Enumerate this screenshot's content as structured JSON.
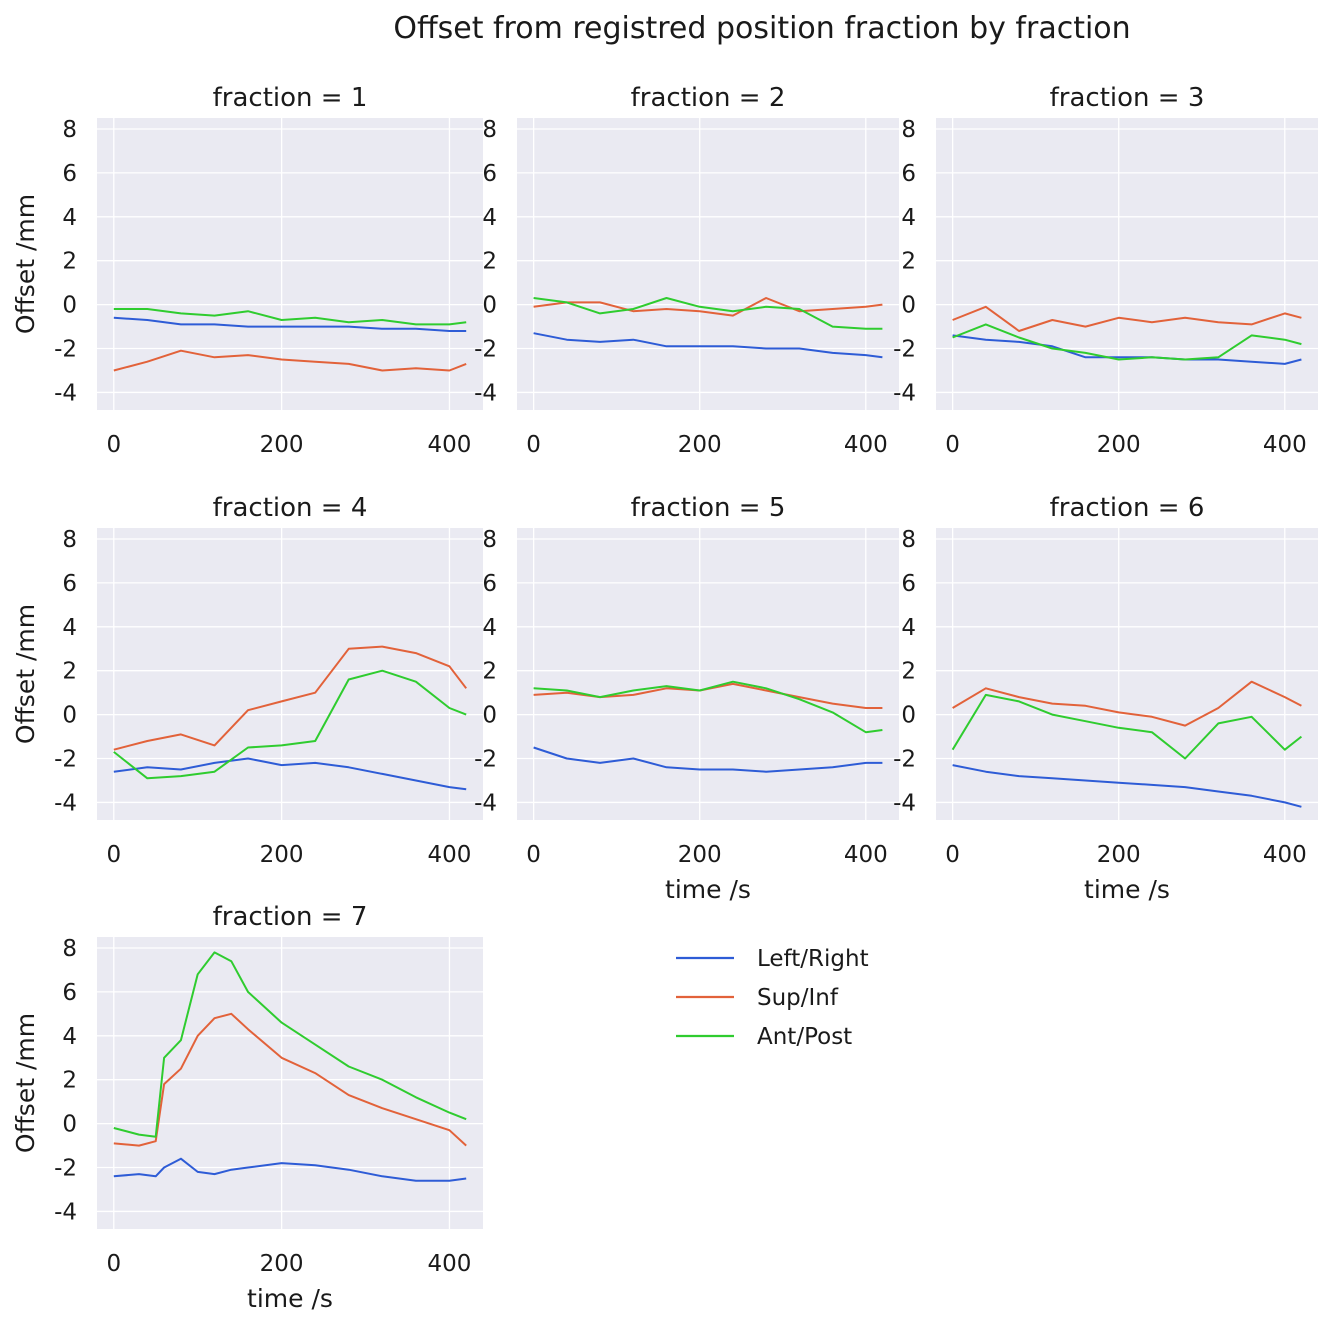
{
  "figure": {
    "title": "Offset from registred position fraction by fraction",
    "y_label": "Offset /mm",
    "x_label": "time /s",
    "legend": [
      {
        "label": "Left/Right",
        "color": "#2e5cd6"
      },
      {
        "label": "Sup/Inf",
        "color": "#e2623a"
      },
      {
        "label": "Ant/Post",
        "color": "#2fcc2f"
      }
    ]
  },
  "chart_data": [
    {
      "type": "line",
      "title": "fraction = 1",
      "xlabel": "",
      "ylabel": "Offset /mm",
      "xlim": [
        -20,
        440
      ],
      "ylim": [
        -4.8,
        8.5
      ],
      "xticks": [
        0,
        200,
        400
      ],
      "yticks": [
        8,
        6,
        4,
        2,
        0,
        -2,
        -4
      ],
      "x": [
        0,
        40,
        80,
        120,
        160,
        200,
        240,
        280,
        320,
        360,
        400,
        420
      ],
      "series": [
        {
          "name": "Left/Right",
          "values": [
            -0.6,
            -0.7,
            -0.9,
            -0.9,
            -1.0,
            -1.0,
            -1.0,
            -1.0,
            -1.1,
            -1.1,
            -1.2,
            -1.2
          ]
        },
        {
          "name": "Sup/Inf",
          "values": [
            -3.0,
            -2.6,
            -2.1,
            -2.4,
            -2.3,
            -2.5,
            -2.6,
            -2.7,
            -3.0,
            -2.9,
            -3.0,
            -2.7
          ]
        },
        {
          "name": "Ant/Post",
          "values": [
            -0.2,
            -0.2,
            -0.4,
            -0.5,
            -0.3,
            -0.7,
            -0.6,
            -0.8,
            -0.7,
            -0.9,
            -0.9,
            -0.8
          ]
        }
      ]
    },
    {
      "type": "line",
      "title": "fraction = 2",
      "xlabel": "",
      "ylabel": "",
      "xlim": [
        -20,
        440
      ],
      "ylim": [
        -4.8,
        8.5
      ],
      "xticks": [
        0,
        200,
        400
      ],
      "yticks": [
        8,
        6,
        4,
        2,
        0,
        -2,
        -4
      ],
      "x": [
        0,
        40,
        80,
        120,
        160,
        200,
        240,
        280,
        320,
        360,
        400,
        420
      ],
      "series": [
        {
          "name": "Left/Right",
          "values": [
            -1.3,
            -1.6,
            -1.7,
            -1.6,
            -1.9,
            -1.9,
            -1.9,
            -2.0,
            -2.0,
            -2.2,
            -2.3,
            -2.4
          ]
        },
        {
          "name": "Sup/Inf",
          "values": [
            -0.1,
            0.1,
            0.1,
            -0.3,
            -0.2,
            -0.3,
            -0.5,
            0.3,
            -0.3,
            -0.2,
            -0.1,
            0.0
          ]
        },
        {
          "name": "Ant/Post",
          "values": [
            0.3,
            0.1,
            -0.4,
            -0.2,
            0.3,
            -0.1,
            -0.3,
            -0.1,
            -0.2,
            -1.0,
            -1.1,
            -1.1
          ]
        }
      ]
    },
    {
      "type": "line",
      "title": "fraction = 3",
      "xlabel": "",
      "ylabel": "",
      "xlim": [
        -20,
        440
      ],
      "ylim": [
        -4.8,
        8.5
      ],
      "xticks": [
        0,
        200,
        400
      ],
      "yticks": [
        8,
        6,
        4,
        2,
        0,
        -2,
        -4
      ],
      "x": [
        0,
        40,
        80,
        120,
        160,
        200,
        240,
        280,
        320,
        360,
        400,
        420
      ],
      "series": [
        {
          "name": "Left/Right",
          "values": [
            -1.4,
            -1.6,
            -1.7,
            -1.9,
            -2.4,
            -2.4,
            -2.4,
            -2.5,
            -2.5,
            -2.6,
            -2.7,
            -2.5
          ]
        },
        {
          "name": "Sup/Inf",
          "values": [
            -0.7,
            -0.1,
            -1.2,
            -0.7,
            -1.0,
            -0.6,
            -0.8,
            -0.6,
            -0.8,
            -0.9,
            -0.4,
            -0.6
          ]
        },
        {
          "name": "Ant/Post",
          "values": [
            -1.5,
            -0.9,
            -1.5,
            -2.0,
            -2.2,
            -2.5,
            -2.4,
            -2.5,
            -2.4,
            -1.4,
            -1.6,
            -1.8
          ]
        }
      ]
    },
    {
      "type": "line",
      "title": "fraction = 4",
      "xlabel": "",
      "ylabel": "Offset /mm",
      "xlim": [
        -20,
        440
      ],
      "ylim": [
        -4.8,
        8.5
      ],
      "xticks": [
        0,
        200,
        400
      ],
      "yticks": [
        8,
        6,
        4,
        2,
        0,
        -2,
        -4
      ],
      "x": [
        0,
        40,
        80,
        120,
        160,
        200,
        240,
        280,
        320,
        360,
        400,
        420
      ],
      "series": [
        {
          "name": "Left/Right",
          "values": [
            -2.6,
            -2.4,
            -2.5,
            -2.2,
            -2.0,
            -2.3,
            -2.2,
            -2.4,
            -2.7,
            -3.0,
            -3.3,
            -3.4
          ]
        },
        {
          "name": "Sup/Inf",
          "values": [
            -1.6,
            -1.2,
            -0.9,
            -1.4,
            0.2,
            0.6,
            1.0,
            3.0,
            3.1,
            2.8,
            2.2,
            1.2
          ]
        },
        {
          "name": "Ant/Post",
          "values": [
            -1.7,
            -2.9,
            -2.8,
            -2.6,
            -1.5,
            -1.4,
            -1.2,
            1.6,
            2.0,
            1.5,
            0.3,
            0.0
          ]
        }
      ]
    },
    {
      "type": "line",
      "title": "fraction = 5",
      "xlabel": "time /s",
      "ylabel": "",
      "xlim": [
        -20,
        440
      ],
      "ylim": [
        -4.8,
        8.5
      ],
      "xticks": [
        0,
        200,
        400
      ],
      "yticks": [
        8,
        6,
        4,
        2,
        0,
        -2,
        -4
      ],
      "x": [
        0,
        40,
        80,
        120,
        160,
        200,
        240,
        280,
        320,
        360,
        400,
        420
      ],
      "series": [
        {
          "name": "Left/Right",
          "values": [
            -1.5,
            -2.0,
            -2.2,
            -2.0,
            -2.4,
            -2.5,
            -2.5,
            -2.6,
            -2.5,
            -2.4,
            -2.2,
            -2.2
          ]
        },
        {
          "name": "Sup/Inf",
          "values": [
            0.9,
            1.0,
            0.8,
            0.9,
            1.2,
            1.1,
            1.4,
            1.1,
            0.8,
            0.5,
            0.3,
            0.3
          ]
        },
        {
          "name": "Ant/Post",
          "values": [
            1.2,
            1.1,
            0.8,
            1.1,
            1.3,
            1.1,
            1.5,
            1.2,
            0.7,
            0.1,
            -0.8,
            -0.7
          ]
        }
      ]
    },
    {
      "type": "line",
      "title": "fraction = 6",
      "xlabel": "time /s",
      "ylabel": "",
      "xlim": [
        -20,
        440
      ],
      "ylim": [
        -4.8,
        8.5
      ],
      "xticks": [
        0,
        200,
        400
      ],
      "yticks": [
        8,
        6,
        4,
        2,
        0,
        -2,
        -4
      ],
      "x": [
        0,
        40,
        80,
        120,
        160,
        200,
        240,
        280,
        320,
        360,
        400,
        420
      ],
      "series": [
        {
          "name": "Left/Right",
          "values": [
            -2.3,
            -2.6,
            -2.8,
            -2.9,
            -3.0,
            -3.1,
            -3.2,
            -3.3,
            -3.5,
            -3.7,
            -4.0,
            -4.2
          ]
        },
        {
          "name": "Sup/Inf",
          "values": [
            0.3,
            1.2,
            0.8,
            0.5,
            0.4,
            0.1,
            -0.1,
            -0.5,
            0.3,
            1.5,
            0.8,
            0.4
          ]
        },
        {
          "name": "Ant/Post",
          "values": [
            -1.6,
            0.9,
            0.6,
            0.0,
            -0.3,
            -0.6,
            -0.8,
            -2.0,
            -0.4,
            -0.1,
            -1.6,
            -1.0
          ]
        }
      ]
    },
    {
      "type": "line",
      "title": "fraction = 7",
      "xlabel": "time /s",
      "ylabel": "Offset /mm",
      "xlim": [
        -20,
        440
      ],
      "ylim": [
        -4.8,
        8.5
      ],
      "xticks": [
        0,
        200,
        400
      ],
      "yticks": [
        8,
        6,
        4,
        2,
        0,
        -2,
        -4
      ],
      "x": [
        0,
        30,
        50,
        60,
        80,
        100,
        120,
        140,
        160,
        200,
        240,
        280,
        320,
        360,
        400,
        420
      ],
      "series": [
        {
          "name": "Left/Right",
          "values": [
            -2.4,
            -2.3,
            -2.4,
            -2.0,
            -1.6,
            -2.2,
            -2.3,
            -2.1,
            -2.0,
            -1.8,
            -1.9,
            -2.1,
            -2.4,
            -2.6,
            -2.6,
            -2.5
          ]
        },
        {
          "name": "Sup/Inf",
          "values": [
            -0.9,
            -1.0,
            -0.8,
            1.8,
            2.5,
            4.0,
            4.8,
            5.0,
            4.3,
            3.0,
            2.3,
            1.3,
            0.7,
            0.2,
            -0.3,
            -1.0
          ]
        },
        {
          "name": "Ant/Post",
          "values": [
            -0.2,
            -0.5,
            -0.6,
            3.0,
            3.8,
            6.8,
            7.8,
            7.4,
            6.0,
            4.6,
            3.6,
            2.6,
            2.0,
            1.2,
            0.5,
            0.2
          ]
        }
      ]
    }
  ]
}
